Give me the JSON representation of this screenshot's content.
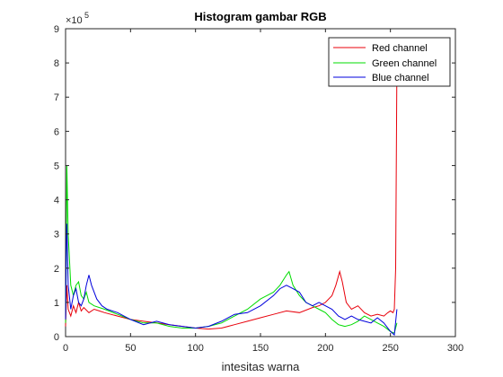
{
  "chart_data": {
    "type": "line",
    "title": "Histogram gambar RGB",
    "xlabel": "intesitas warna",
    "ylabel": "",
    "xlim": [
      0,
      300
    ],
    "ylim": [
      0,
      9
    ],
    "y_multiplier_label": "×10",
    "y_multiplier_exponent": "5",
    "x_ticks": [
      0,
      50,
      100,
      150,
      200,
      250,
      300
    ],
    "x_tick_labels": [
      "0",
      "50",
      "100",
      "150",
      "200",
      "250",
      "300"
    ],
    "y_ticks": [
      0,
      1,
      2,
      3,
      4,
      5,
      6,
      7,
      8,
      9
    ],
    "y_tick_labels": [
      "0",
      "1",
      "2",
      "3",
      "4",
      "5",
      "6",
      "7",
      "8",
      "9"
    ],
    "grid": false,
    "legend_position": "top-right",
    "series": [
      {
        "name": "Red channel",
        "color": "#e8000b",
        "points": [
          [
            0,
            0.3
          ],
          [
            1,
            1.5
          ],
          [
            2,
            0.8
          ],
          [
            4,
            0.6
          ],
          [
            6,
            0.9
          ],
          [
            8,
            0.7
          ],
          [
            10,
            1.0
          ],
          [
            12,
            0.75
          ],
          [
            14,
            0.85
          ],
          [
            18,
            0.7
          ],
          [
            22,
            0.8
          ],
          [
            26,
            0.75
          ],
          [
            30,
            0.7
          ],
          [
            40,
            0.6
          ],
          [
            50,
            0.5
          ],
          [
            60,
            0.45
          ],
          [
            70,
            0.4
          ],
          [
            80,
            0.35
          ],
          [
            90,
            0.3
          ],
          [
            100,
            0.25
          ],
          [
            110,
            0.22
          ],
          [
            120,
            0.25
          ],
          [
            130,
            0.35
          ],
          [
            140,
            0.45
          ],
          [
            150,
            0.55
          ],
          [
            160,
            0.65
          ],
          [
            170,
            0.75
          ],
          [
            180,
            0.7
          ],
          [
            190,
            0.85
          ],
          [
            195,
            0.9
          ],
          [
            200,
            1.0
          ],
          [
            205,
            1.2
          ],
          [
            208,
            1.5
          ],
          [
            211,
            1.9
          ],
          [
            213,
            1.6
          ],
          [
            216,
            1.0
          ],
          [
            220,
            0.8
          ],
          [
            225,
            0.9
          ],
          [
            230,
            0.7
          ],
          [
            235,
            0.6
          ],
          [
            240,
            0.65
          ],
          [
            245,
            0.6
          ],
          [
            248,
            0.7
          ],
          [
            250,
            0.75
          ],
          [
            252,
            0.7
          ],
          [
            253,
            0.8
          ],
          [
            254,
            2.0
          ],
          [
            255,
            8.0
          ]
        ]
      },
      {
        "name": "Green channel",
        "color": "#00dc00",
        "points": [
          [
            0,
            0.4
          ],
          [
            0.5,
            2.0
          ],
          [
            1,
            5.0
          ],
          [
            2,
            3.0
          ],
          [
            4,
            1.5
          ],
          [
            6,
            1.2
          ],
          [
            8,
            1.5
          ],
          [
            10,
            1.6
          ],
          [
            12,
            1.2
          ],
          [
            14,
            1.1
          ],
          [
            16,
            1.3
          ],
          [
            18,
            1.0
          ],
          [
            22,
            0.9
          ],
          [
            26,
            0.85
          ],
          [
            30,
            0.8
          ],
          [
            40,
            0.65
          ],
          [
            50,
            0.5
          ],
          [
            60,
            0.4
          ],
          [
            70,
            0.4
          ],
          [
            80,
            0.3
          ],
          [
            90,
            0.25
          ],
          [
            100,
            0.25
          ],
          [
            110,
            0.3
          ],
          [
            120,
            0.4
          ],
          [
            130,
            0.6
          ],
          [
            140,
            0.8
          ],
          [
            150,
            1.1
          ],
          [
            155,
            1.2
          ],
          [
            160,
            1.3
          ],
          [
            165,
            1.5
          ],
          [
            170,
            1.8
          ],
          [
            172,
            1.9
          ],
          [
            175,
            1.5
          ],
          [
            180,
            1.2
          ],
          [
            185,
            1.0
          ],
          [
            190,
            0.9
          ],
          [
            195,
            0.8
          ],
          [
            200,
            0.7
          ],
          [
            205,
            0.5
          ],
          [
            210,
            0.35
          ],
          [
            215,
            0.3
          ],
          [
            220,
            0.35
          ],
          [
            225,
            0.45
          ],
          [
            230,
            0.6
          ],
          [
            235,
            0.5
          ],
          [
            240,
            0.4
          ],
          [
            245,
            0.3
          ],
          [
            250,
            0.15
          ],
          [
            253,
            0.1
          ],
          [
            255,
            0.4
          ]
        ]
      },
      {
        "name": "Blue channel",
        "color": "#0000dc",
        "points": [
          [
            0,
            0.5
          ],
          [
            0.5,
            2.5
          ],
          [
            1,
            3.3
          ],
          [
            2,
            1.5
          ],
          [
            4,
            0.8
          ],
          [
            6,
            1.2
          ],
          [
            8,
            1.4
          ],
          [
            10,
            1.0
          ],
          [
            12,
            0.9
          ],
          [
            14,
            1.1
          ],
          [
            16,
            1.5
          ],
          [
            18,
            1.8
          ],
          [
            20,
            1.5
          ],
          [
            24,
            1.1
          ],
          [
            28,
            0.9
          ],
          [
            32,
            0.8
          ],
          [
            40,
            0.7
          ],
          [
            50,
            0.5
          ],
          [
            60,
            0.35
          ],
          [
            70,
            0.45
          ],
          [
            80,
            0.35
          ],
          [
            90,
            0.3
          ],
          [
            100,
            0.25
          ],
          [
            110,
            0.3
          ],
          [
            120,
            0.45
          ],
          [
            130,
            0.65
          ],
          [
            140,
            0.7
          ],
          [
            150,
            0.9
          ],
          [
            160,
            1.2
          ],
          [
            165,
            1.4
          ],
          [
            170,
            1.5
          ],
          [
            175,
            1.4
          ],
          [
            180,
            1.3
          ],
          [
            185,
            1.0
          ],
          [
            190,
            0.9
          ],
          [
            195,
            1.0
          ],
          [
            200,
            0.9
          ],
          [
            205,
            0.8
          ],
          [
            210,
            0.6
          ],
          [
            215,
            0.5
          ],
          [
            220,
            0.6
          ],
          [
            225,
            0.5
          ],
          [
            230,
            0.45
          ],
          [
            235,
            0.4
          ],
          [
            240,
            0.55
          ],
          [
            245,
            0.4
          ],
          [
            250,
            0.15
          ],
          [
            253,
            0.05
          ],
          [
            255,
            0.8
          ]
        ]
      }
    ]
  }
}
